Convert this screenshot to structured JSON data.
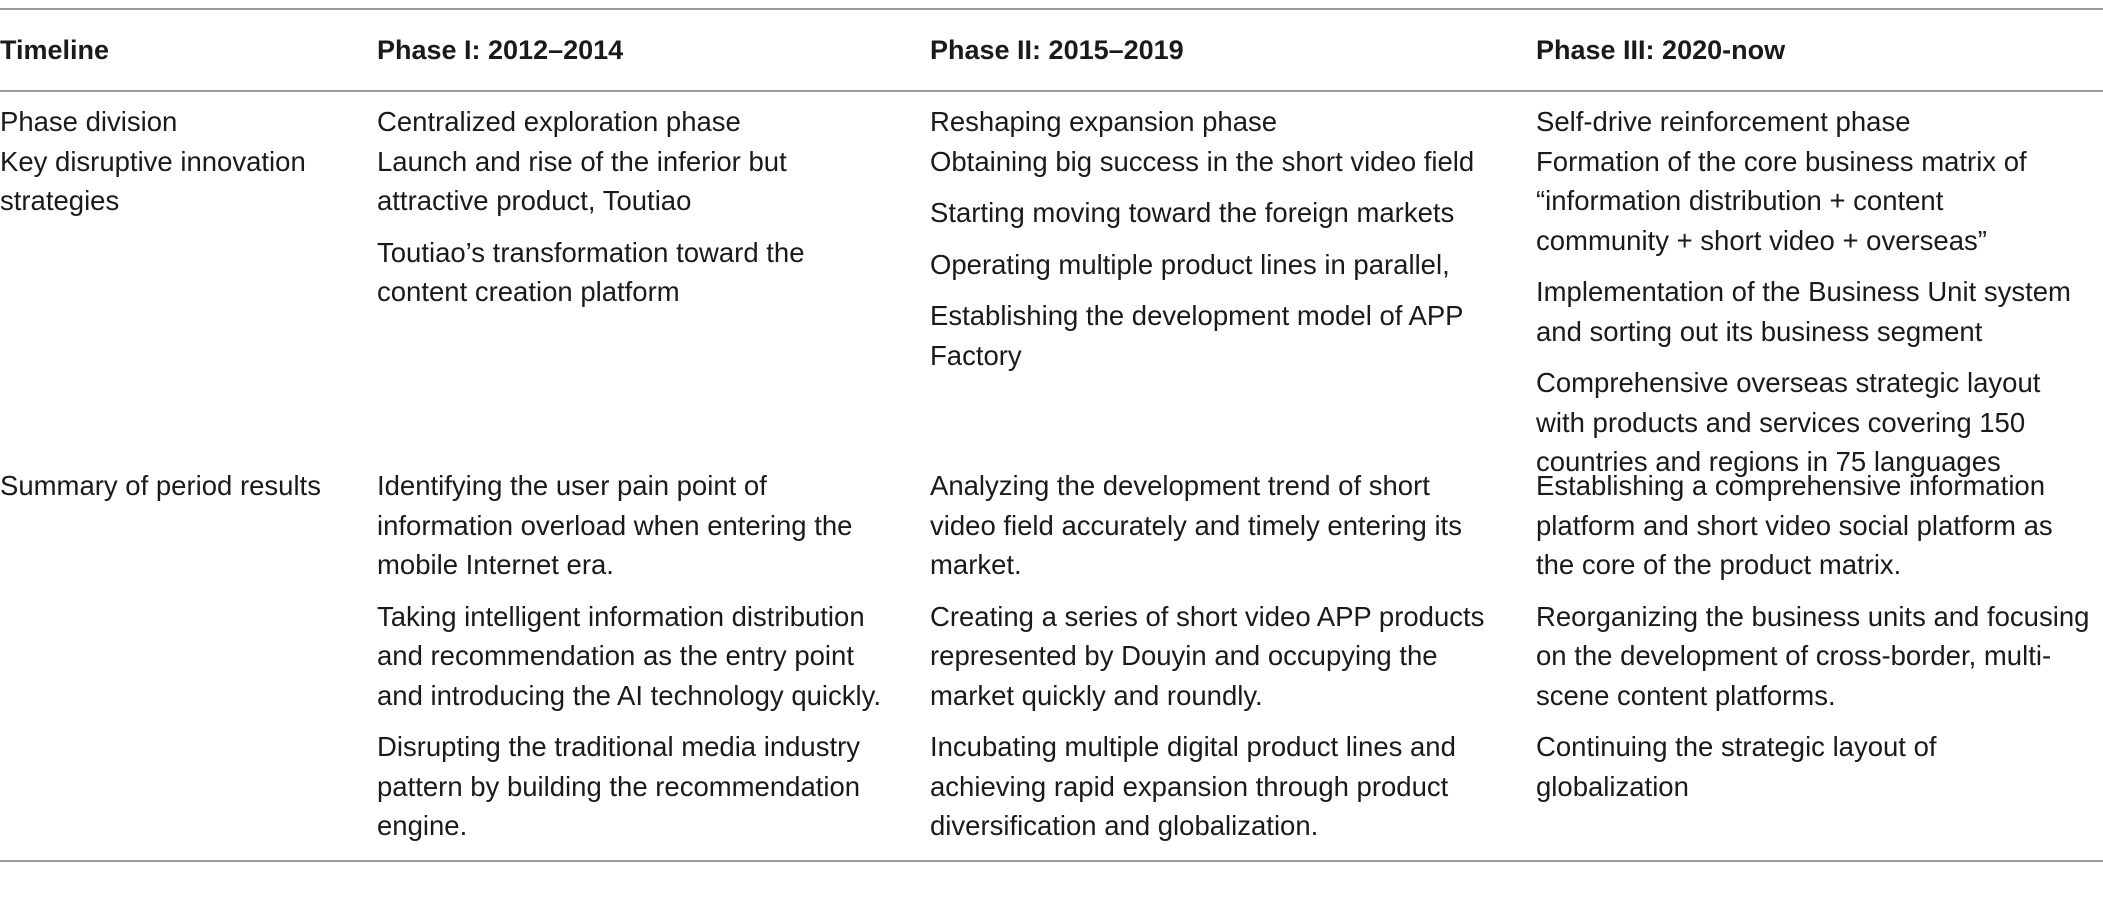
{
  "table": {
    "headers": [
      "Timeline",
      "Phase I: 2012–2014",
      "Phase II: 2015–2019",
      "Phase III: 2020-now"
    ],
    "rows": [
      {
        "label_lines": [
          "Phase division",
          "Key disruptive innovation",
          "strategies"
        ],
        "phase1": [
          [
            "Centralized exploration phase",
            "Launch and rise of the inferior but",
            "attractive product, Toutiao"
          ],
          [
            "Toutiao’s transformation toward the",
            "content creation platform"
          ]
        ],
        "phase2": [
          [
            "Reshaping expansion phase",
            "Obtaining big success in the short video field"
          ],
          [
            "Starting moving toward the foreign markets"
          ],
          [
            "Operating multiple product lines in parallel,"
          ],
          [
            "Establishing the development model of APP",
            "Factory"
          ]
        ],
        "phase3": [
          [
            "Self-drive reinforcement phase",
            "Formation of the core business matrix of",
            "“information distribution + content",
            "community + short video + overseas”"
          ],
          [
            "Implementation of the Business Unit system",
            "and sorting out its business segment"
          ],
          [
            "Comprehensive overseas strategic layout",
            "with products and services covering 150",
            "countries and regions in 75 languages"
          ]
        ]
      },
      {
        "label_lines": [
          "Summary of period results"
        ],
        "phase1": [
          [
            "Identifying the user pain point of",
            "information overload when entering the",
            "mobile Internet era."
          ],
          [
            "Taking intelligent information distribution",
            "and recommendation as the entry point",
            "and introducing the AI technology quickly."
          ],
          [
            "Disrupting the traditional media industry",
            "pattern by building the recommendation",
            "engine."
          ]
        ],
        "phase2": [
          [
            "Analyzing the development trend of short",
            "video field accurately and timely entering its",
            "market."
          ],
          [
            "Creating a series of short video APP products",
            "represented by Douyin and occupying the",
            "market quickly and roundly."
          ],
          [
            "Incubating multiple digital product lines and",
            "achieving rapid expansion through product",
            "diversification and globalization."
          ]
        ],
        "phase3": [
          [
            "Establishing a comprehensive information",
            "platform and short video social platform as",
            "the core of the product matrix."
          ],
          [
            "Reorganizing the business units and focusing",
            "on the development of cross-border, multi-",
            "scene content platforms."
          ],
          [
            "Continuing the strategic layout of",
            "globalization"
          ]
        ]
      }
    ]
  }
}
